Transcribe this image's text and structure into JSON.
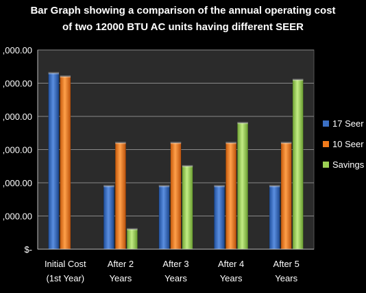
{
  "colors": {
    "background": "#000000",
    "plot_area": "#2b2b2b",
    "gridline": "#8a8a8a",
    "axis": "#bfbfbf",
    "series": [
      "#3a6fc4",
      "#f07a1a",
      "#9bcf53"
    ]
  },
  "chart_data": {
    "type": "bar",
    "title": "Bar Graph showing a comparison of the annual operating cost",
    "subtitle": "of two 12000  BTU AC units having different SEER",
    "categories": [
      [
        "Initial Cost",
        "(1st Year)"
      ],
      [
        "After 2",
        "Years"
      ],
      [
        "After 3",
        "Years"
      ],
      [
        "After 4",
        "Years"
      ],
      [
        "After 5",
        "Years"
      ]
    ],
    "series": [
      {
        "name": "17 Seer",
        "values": [
          2650,
          950,
          950,
          950,
          950
        ]
      },
      {
        "name": "10 Seer",
        "values": [
          2600,
          1600,
          1600,
          1600,
          1600
        ]
      },
      {
        "name": "Savings",
        "values": [
          0,
          300,
          1250,
          1900,
          2550
        ]
      }
    ],
    "ylim": [
      0,
      3000
    ],
    "yticks": [
      0,
      500,
      1000,
      1500,
      2000,
      2500,
      3000
    ],
    "ytick_labels": [
      "$-",
      ",000.00",
      ",000.00",
      ",000.00",
      ",000.00",
      ",000.00",
      ",000.00"
    ],
    "grid": true,
    "legend_position": "right"
  }
}
